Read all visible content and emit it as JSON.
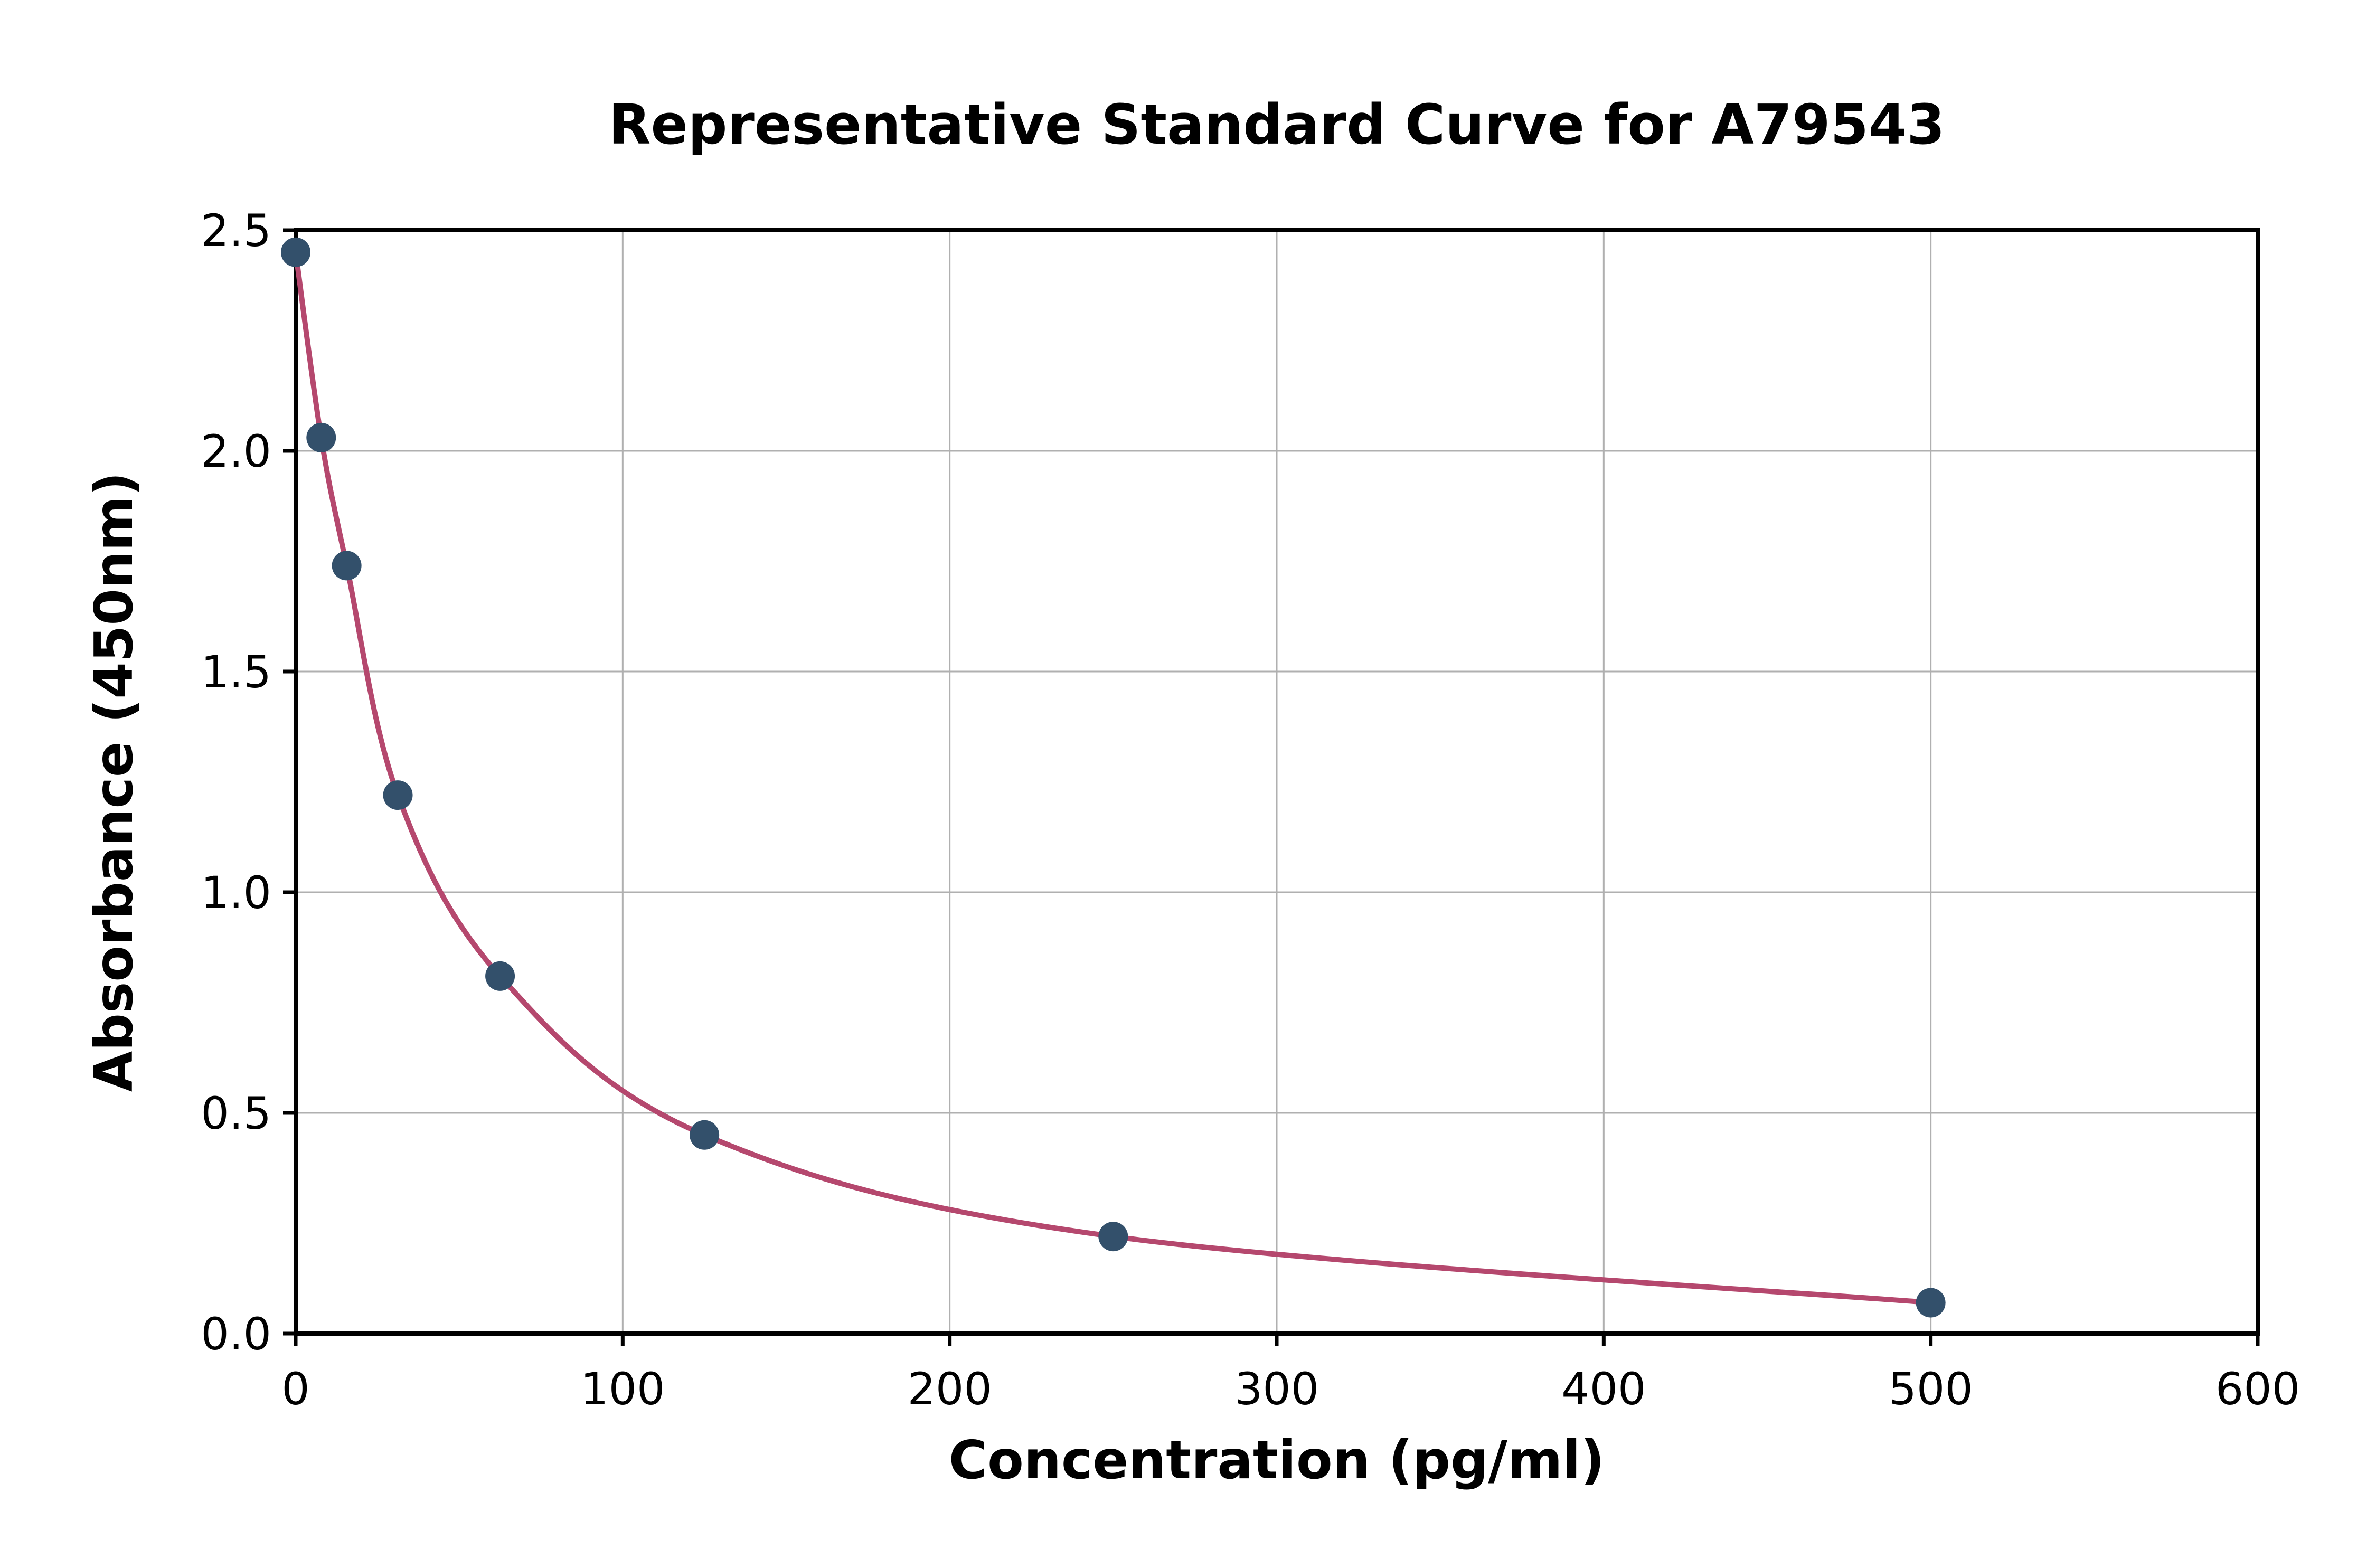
{
  "chart_data": {
    "type": "scatter",
    "title": "Representative Standard Curve for A79543",
    "xlabel": "Concentration (pg/ml)",
    "ylabel": "Absorbance (450nm)",
    "xlim": [
      0,
      600
    ],
    "ylim": [
      0,
      2.5
    ],
    "x_ticks": [
      0,
      100,
      200,
      300,
      400,
      500,
      600
    ],
    "x_tick_labels": [
      "0",
      "100",
      "200",
      "300",
      "400",
      "500",
      "600"
    ],
    "y_ticks": [
      0.0,
      0.5,
      1.0,
      1.5,
      2.0,
      2.5
    ],
    "y_tick_labels": [
      "0.0",
      "0.5",
      "1.0",
      "1.5",
      "2.0",
      "2.5"
    ],
    "grid": true,
    "legend": "none",
    "points": [
      {
        "x": 0,
        "y": 2.45
      },
      {
        "x": 7.8,
        "y": 2.03
      },
      {
        "x": 15.6,
        "y": 1.74
      },
      {
        "x": 31.25,
        "y": 1.22
      },
      {
        "x": 62.5,
        "y": 0.81
      },
      {
        "x": 125,
        "y": 0.45
      },
      {
        "x": 250,
        "y": 0.22
      },
      {
        "x": 500,
        "y": 0.07
      }
    ],
    "curve_color": "#b5486e",
    "point_color": "#33506b",
    "grid_color": "#b0b0b0",
    "spine_color": "#000000",
    "background": "#ffffff"
  }
}
